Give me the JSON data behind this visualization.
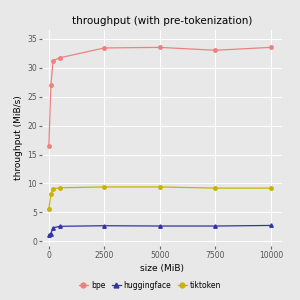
{
  "title": "throughput (with pre-tokenization)",
  "xlabel": "size (MiB)",
  "ylabel": "throughput (MiB/s)",
  "background_color": "#e8e8e8",
  "plot_bg_color": "#e8e8e8",
  "grid_color": "#ffffff",
  "series": {
    "bpe": {
      "x": [
        10,
        100,
        200,
        500,
        2500,
        5000,
        7500,
        10000
      ],
      "y": [
        16.5,
        27.0,
        31.2,
        31.7,
        33.4,
        33.5,
        33.0,
        33.5
      ],
      "color": "#f08080",
      "marker": "o",
      "markersize": 2.5,
      "linewidth": 0.9
    },
    "huggingface": {
      "x": [
        10,
        100,
        200,
        500,
        2500,
        5000,
        7500,
        10000
      ],
      "y": [
        1.1,
        1.35,
        2.35,
        2.6,
        2.7,
        2.65,
        2.65,
        2.75
      ],
      "color": "#3333aa",
      "marker": "^",
      "markersize": 2.5,
      "linewidth": 0.9
    },
    "tiktoken": {
      "x": [
        10,
        100,
        200,
        500,
        2500,
        5000,
        7500,
        10000
      ],
      "y": [
        5.6,
        8.2,
        9.1,
        9.25,
        9.4,
        9.4,
        9.2,
        9.2
      ],
      "color": "#c8b400",
      "marker": "o",
      "markersize": 2.5,
      "linewidth": 0.9
    }
  },
  "xlim": [
    -300,
    10500
  ],
  "ylim": [
    -0.8,
    36.5
  ],
  "xticks": [
    0,
    2500,
    5000,
    7500,
    10000
  ],
  "yticks": [
    0,
    5,
    10,
    15,
    20,
    25,
    30,
    35
  ],
  "legend_labels": [
    "bpe",
    "huggingface",
    "tiktoken"
  ],
  "legend_colors": [
    "#f08080",
    "#3333aa",
    "#c8b400"
  ],
  "legend_markers": [
    "o",
    "^",
    "o"
  ],
  "title_fontsize": 7.5,
  "axis_label_fontsize": 6.5,
  "tick_fontsize": 5.5
}
